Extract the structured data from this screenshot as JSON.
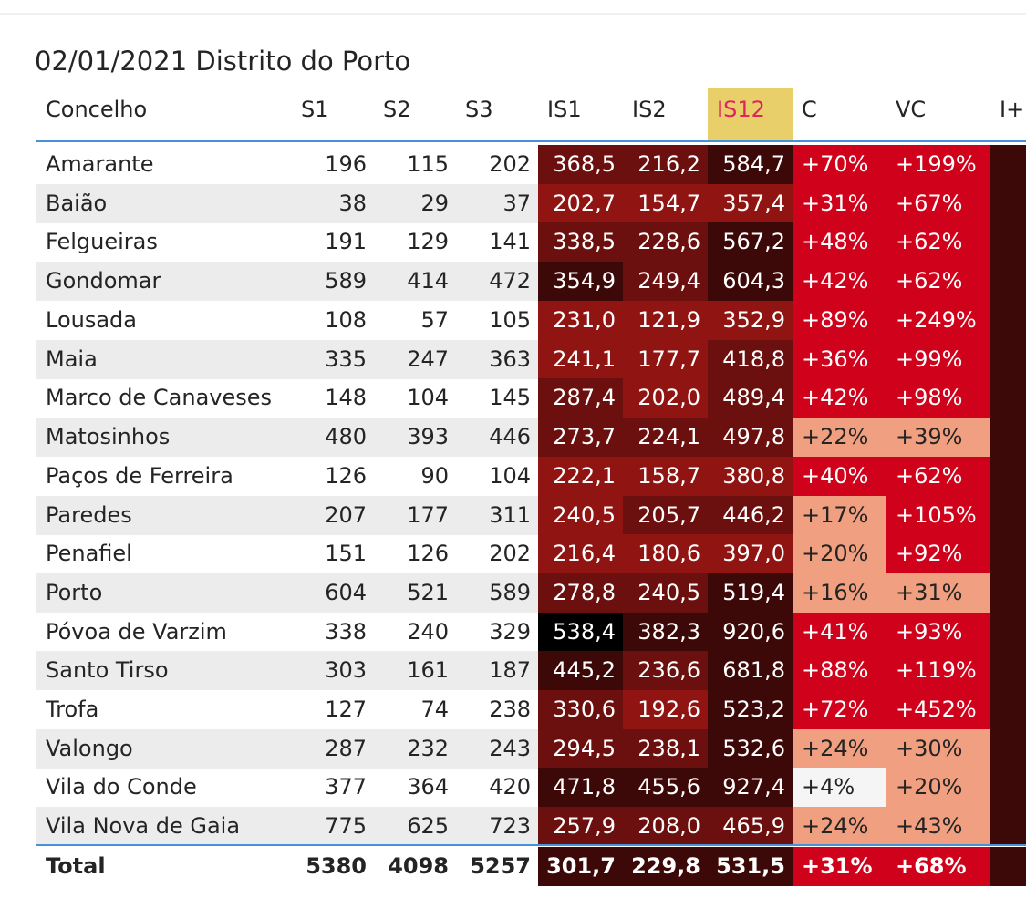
{
  "title": "02/01/2021 Distrito do Porto",
  "columns": [
    "Concelho",
    "S1",
    "S2",
    "S3",
    "IS1",
    "IS2",
    "IS12",
    "C",
    "VC",
    "I+"
  ],
  "highlight_column": "IS12",
  "colors": {
    "darkest": "#000000",
    "very_dark": "#3d0908",
    "dark": "#6b100f",
    "medium_dark": "#8f1412",
    "red": "#d0021b",
    "light_red": "#f0a080",
    "lightest": "#f5f5f5",
    "header_highlight": "#e8cf6a",
    "header_highlight_text": "#e0245e",
    "rule": "#4a90d9",
    "zebra": "#ececec"
  },
  "rows": [
    {
      "name": "Amarante",
      "s1": "196",
      "s2": "115",
      "s3": "202",
      "is1": "368,5",
      "is2": "216,2",
      "is12": "584,7",
      "c": "+70%",
      "vc": "+199%",
      "cls": [
        "dark",
        "dark",
        "very_dark",
        "red",
        "red",
        "very_dark"
      ]
    },
    {
      "name": "Baião",
      "s1": "38",
      "s2": "29",
      "s3": "37",
      "is1": "202,7",
      "is2": "154,7",
      "is12": "357,4",
      "c": "+31%",
      "vc": "+67%",
      "cls": [
        "medium_dark",
        "medium_dark",
        "medium_dark",
        "red",
        "red",
        "very_dark"
      ]
    },
    {
      "name": "Felgueiras",
      "s1": "191",
      "s2": "129",
      "s3": "141",
      "is1": "338,5",
      "is2": "228,6",
      "is12": "567,2",
      "c": "+48%",
      "vc": "+62%",
      "cls": [
        "dark",
        "dark",
        "very_dark",
        "red",
        "red",
        "very_dark"
      ]
    },
    {
      "name": "Gondomar",
      "s1": "589",
      "s2": "414",
      "s3": "472",
      "is1": "354,9",
      "is2": "249,4",
      "is12": "604,3",
      "c": "+42%",
      "vc": "+62%",
      "cls": [
        "very_dark",
        "dark",
        "very_dark",
        "red",
        "red",
        "very_dark"
      ]
    },
    {
      "name": "Lousada",
      "s1": "108",
      "s2": "57",
      "s3": "105",
      "is1": "231,0",
      "is2": "121,9",
      "is12": "352,9",
      "c": "+89%",
      "vc": "+249%",
      "cls": [
        "medium_dark",
        "medium_dark",
        "medium_dark",
        "red",
        "red",
        "very_dark"
      ]
    },
    {
      "name": "Maia",
      "s1": "335",
      "s2": "247",
      "s3": "363",
      "is1": "241,1",
      "is2": "177,7",
      "is12": "418,8",
      "c": "+36%",
      "vc": "+99%",
      "cls": [
        "medium_dark",
        "medium_dark",
        "dark",
        "red",
        "red",
        "very_dark"
      ]
    },
    {
      "name": "Marco de Canaveses",
      "s1": "148",
      "s2": "104",
      "s3": "145",
      "is1": "287,4",
      "is2": "202,0",
      "is12": "489,4",
      "c": "+42%",
      "vc": "+98%",
      "cls": [
        "dark",
        "medium_dark",
        "dark",
        "red",
        "red",
        "very_dark"
      ]
    },
    {
      "name": "Matosinhos",
      "s1": "480",
      "s2": "393",
      "s3": "446",
      "is1": "273,7",
      "is2": "224,1",
      "is12": "497,8",
      "c": "+22%",
      "vc": "+39%",
      "cls": [
        "dark",
        "dark",
        "dark",
        "light_red",
        "light_red",
        "very_dark"
      ]
    },
    {
      "name": "Paços de Ferreira",
      "s1": "126",
      "s2": "90",
      "s3": "104",
      "is1": "222,1",
      "is2": "158,7",
      "is12": "380,8",
      "c": "+40%",
      "vc": "+62%",
      "cls": [
        "medium_dark",
        "medium_dark",
        "medium_dark",
        "red",
        "red",
        "very_dark"
      ]
    },
    {
      "name": "Paredes",
      "s1": "207",
      "s2": "177",
      "s3": "311",
      "is1": "240,5",
      "is2": "205,7",
      "is12": "446,2",
      "c": "+17%",
      "vc": "+105%",
      "cls": [
        "medium_dark",
        "dark",
        "dark",
        "light_red",
        "red",
        "very_dark"
      ]
    },
    {
      "name": "Penafiel",
      "s1": "151",
      "s2": "126",
      "s3": "202",
      "is1": "216,4",
      "is2": "180,6",
      "is12": "397,0",
      "c": "+20%",
      "vc": "+92%",
      "cls": [
        "medium_dark",
        "medium_dark",
        "medium_dark",
        "light_red",
        "red",
        "very_dark"
      ]
    },
    {
      "name": "Porto",
      "s1": "604",
      "s2": "521",
      "s3": "589",
      "is1": "278,8",
      "is2": "240,5",
      "is12": "519,4",
      "c": "+16%",
      "vc": "+31%",
      "cls": [
        "dark",
        "dark",
        "very_dark",
        "light_red",
        "light_red",
        "very_dark"
      ]
    },
    {
      "name": "Póvoa de Varzim",
      "s1": "338",
      "s2": "240",
      "s3": "329",
      "is1": "538,4",
      "is2": "382,3",
      "is12": "920,6",
      "c": "+41%",
      "vc": "+93%",
      "cls": [
        "darkest",
        "very_dark",
        "very_dark",
        "red",
        "red",
        "very_dark"
      ]
    },
    {
      "name": "Santo Tirso",
      "s1": "303",
      "s2": "161",
      "s3": "187",
      "is1": "445,2",
      "is2": "236,6",
      "is12": "681,8",
      "c": "+88%",
      "vc": "+119%",
      "cls": [
        "very_dark",
        "dark",
        "very_dark",
        "red",
        "red",
        "very_dark"
      ]
    },
    {
      "name": "Trofa",
      "s1": "127",
      "s2": "74",
      "s3": "238",
      "is1": "330,6",
      "is2": "192,6",
      "is12": "523,2",
      "c": "+72%",
      "vc": "+452%",
      "cls": [
        "dark",
        "medium_dark",
        "very_dark",
        "red",
        "red",
        "very_dark"
      ]
    },
    {
      "name": "Valongo",
      "s1": "287",
      "s2": "232",
      "s3": "243",
      "is1": "294,5",
      "is2": "238,1",
      "is12": "532,6",
      "c": "+24%",
      "vc": "+30%",
      "cls": [
        "dark",
        "dark",
        "very_dark",
        "light_red",
        "light_red",
        "very_dark"
      ]
    },
    {
      "name": "Vila do Conde",
      "s1": "377",
      "s2": "364",
      "s3": "420",
      "is1": "471,8",
      "is2": "455,6",
      "is12": "927,4",
      "c": "+4%",
      "vc": "+20%",
      "cls": [
        "very_dark",
        "very_dark",
        "very_dark",
        "lightest",
        "light_red",
        "very_dark"
      ]
    },
    {
      "name": "Vila Nova de Gaia",
      "s1": "775",
      "s2": "625",
      "s3": "723",
      "is1": "257,9",
      "is2": "208,0",
      "is12": "465,9",
      "c": "+24%",
      "vc": "+43%",
      "cls": [
        "dark",
        "dark",
        "dark",
        "light_red",
        "light_red",
        "very_dark"
      ]
    }
  ],
  "total": {
    "name": "Total",
    "s1": "5380",
    "s2": "4098",
    "s3": "5257",
    "is1": "301,7",
    "is2": "229,8",
    "is12": "531,5",
    "c": "+31%",
    "vc": "+68%",
    "cls": [
      "very_dark",
      "very_dark",
      "very_dark",
      "red",
      "red",
      "very_dark"
    ]
  }
}
